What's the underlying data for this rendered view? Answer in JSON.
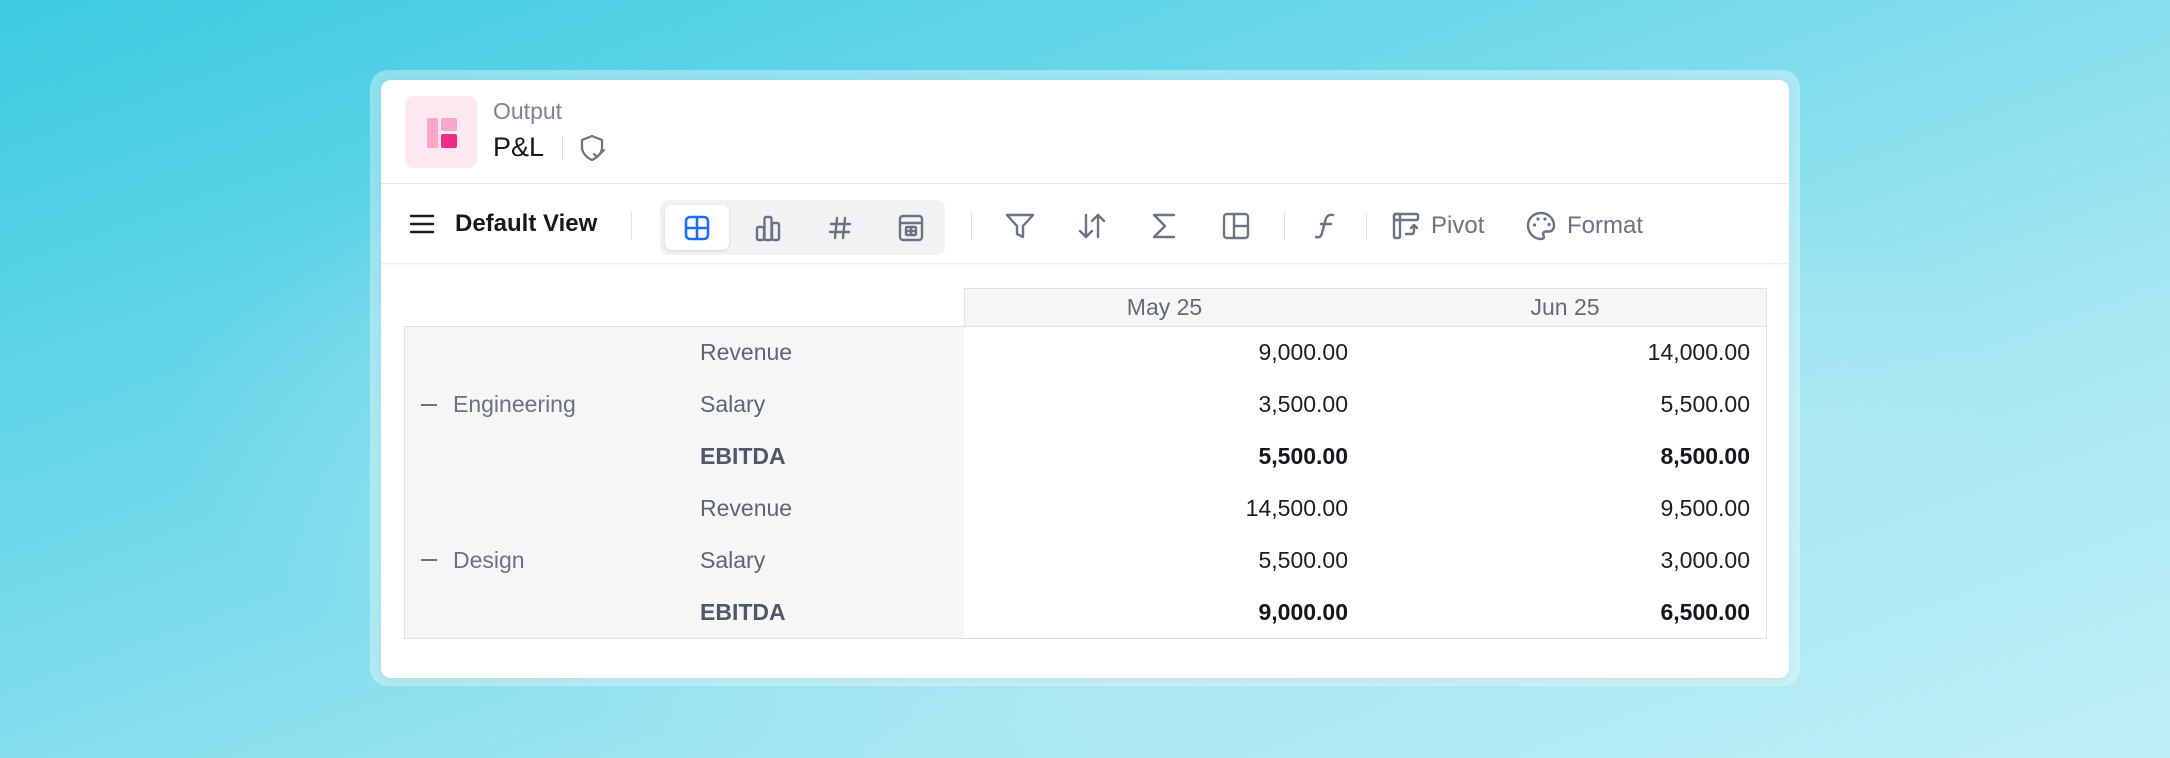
{
  "header": {
    "subtitle": "Output",
    "title": "P&L",
    "badge_icon": "shield-check-icon",
    "app_icon": "layout-blocks-icon"
  },
  "toolbar": {
    "view_label": "Default View",
    "menu_icon": "hamburger-icon",
    "view_modes": [
      {
        "icon": "table-grid-icon",
        "active": true
      },
      {
        "icon": "bar-chart-icon",
        "active": false
      },
      {
        "icon": "hash-icon",
        "active": false
      },
      {
        "icon": "spreadsheet-icon",
        "active": false
      }
    ],
    "tools": [
      "filter-icon",
      "sort-icon",
      "sum-icon",
      "layout-icon",
      "function-icon"
    ],
    "pivot_label": "Pivot",
    "format_label": "Format"
  },
  "table": {
    "columns": [
      "May 25",
      "Jun 25"
    ],
    "groups": [
      {
        "name": "Engineering",
        "rows": [
          {
            "label": "Revenue",
            "values": [
              "9,000.00",
              "14,000.00"
            ],
            "bold": false
          },
          {
            "label": "Salary",
            "values": [
              "3,500.00",
              "5,500.00"
            ],
            "bold": false
          },
          {
            "label": "EBITDA",
            "values": [
              "5,500.00",
              "8,500.00"
            ],
            "bold": true
          }
        ]
      },
      {
        "name": "Design",
        "rows": [
          {
            "label": "Revenue",
            "values": [
              "14,500.00",
              "9,500.00"
            ],
            "bold": false
          },
          {
            "label": "Salary",
            "values": [
              "5,500.00",
              "3,000.00"
            ],
            "bold": false
          },
          {
            "label": "EBITDA",
            "values": [
              "9,000.00",
              "6,500.00"
            ],
            "bold": true
          }
        ]
      }
    ]
  },
  "colors": {
    "accent": "#1e6ff0",
    "brand_pink": "#ec2d84"
  }
}
